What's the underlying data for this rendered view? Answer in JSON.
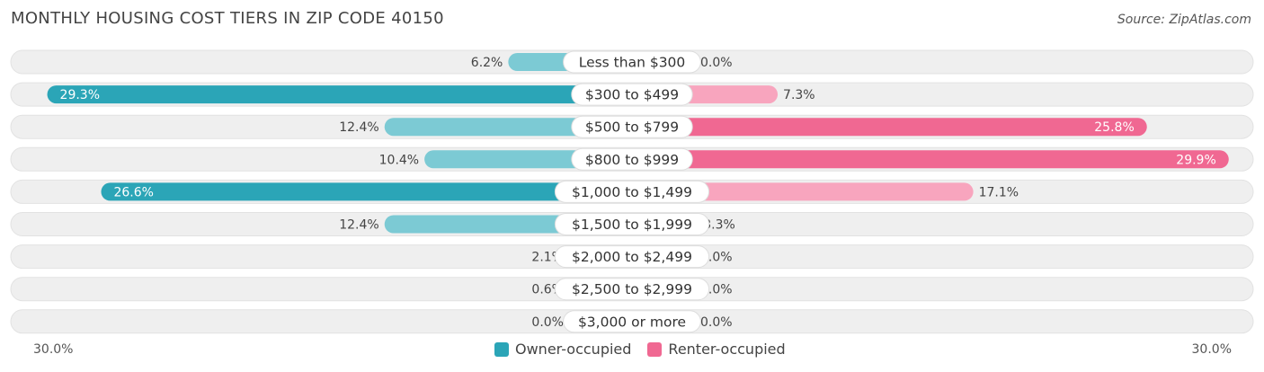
{
  "header": {
    "title": "MONTHLY HOUSING COST TIERS IN ZIP CODE 40150",
    "source": "Source: ZipAtlas.com"
  },
  "axis": {
    "left_label": "30.0%",
    "right_label": "30.0%"
  },
  "legend": {
    "owner_label": "Owner-occupied",
    "renter_label": "Renter-occupied"
  },
  "colors": {
    "owner_strong": "#2ba5b7",
    "owner_light": "#7ccad4",
    "renter_strong": "#f06892",
    "renter_light": "#f8a5be",
    "track": "#efefef"
  },
  "chart_data": {
    "type": "bar",
    "orientation": "horizontal-diverging",
    "title": "MONTHLY HOUSING COST TIERS IN ZIP CODE 40150",
    "xlim": [
      -30,
      30
    ],
    "categories": [
      "Less than $300",
      "$300 to $499",
      "$500 to $799",
      "$800 to $999",
      "$1,000 to $1,499",
      "$1,500 to $1,999",
      "$2,000 to $2,499",
      "$2,500 to $2,999",
      "$3,000 or more"
    ],
    "series": [
      {
        "name": "Owner-occupied",
        "values": [
          6.2,
          29.3,
          12.4,
          10.4,
          26.6,
          12.4,
          2.1,
          0.6,
          0.0
        ],
        "labels": [
          "6.2%",
          "29.3%",
          "12.4%",
          "10.4%",
          "26.6%",
          "12.4%",
          "2.1%",
          "0.6%",
          "0.0%"
        ]
      },
      {
        "name": "Renter-occupied",
        "values": [
          0.0,
          7.3,
          25.8,
          29.9,
          17.1,
          3.3,
          0.0,
          0.0,
          0.0
        ],
        "labels": [
          "0.0%",
          "7.3%",
          "25.8%",
          "29.9%",
          "17.1%",
          "3.3%",
          "0.0%",
          "0.0%",
          "0.0%"
        ]
      }
    ],
    "legend_position": "bottom-center"
  }
}
